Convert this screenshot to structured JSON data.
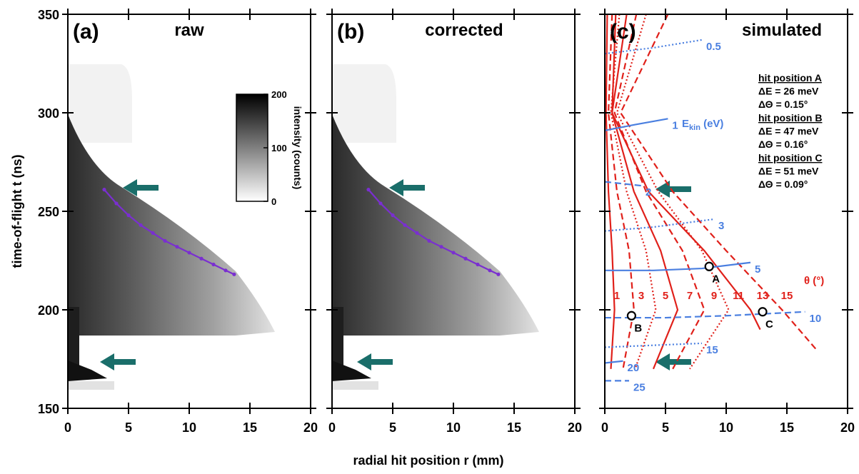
{
  "chart_data": [
    {
      "type": "heatmap",
      "panel_label": "(a)",
      "title": "raw",
      "ylabel": "time-of-flight t (ns)",
      "show_ytick_labels": true,
      "xlim": [
        0,
        20
      ],
      "xticks": [
        0,
        5,
        10,
        15,
        20
      ],
      "ylim": [
        150,
        350
      ],
      "yticks": [
        150,
        200,
        250,
        300,
        350
      ],
      "trace": {
        "color": "#7a2fd0",
        "x": [
          3,
          4,
          5,
          6,
          7,
          8,
          9,
          10,
          11,
          12,
          13,
          13.7
        ],
        "values": [
          261,
          254,
          248,
          243,
          239,
          235,
          232,
          229,
          226,
          223,
          220,
          218
        ]
      },
      "colorbar": {
        "label": "intensity (counts)",
        "lim": [
          0,
          200
        ],
        "ticks": [
          0,
          100,
          200
        ]
      }
    },
    {
      "type": "heatmap",
      "panel_label": "(b)",
      "title": "corrected",
      "xlabel": "radial hit position r (mm)",
      "show_ytick_labels": false,
      "xlim": [
        0,
        20
      ],
      "xticks": [
        0,
        5,
        10,
        15,
        20
      ],
      "ylim": [
        150,
        350
      ],
      "yticks": [
        150,
        200,
        250,
        300,
        350
      ],
      "trace": {
        "color": "#7a2fd0",
        "x": [
          3,
          4,
          5,
          6,
          7,
          8,
          9,
          10,
          11,
          12,
          13,
          13.7
        ],
        "values": [
          261,
          254,
          248,
          243,
          239,
          235,
          232,
          229,
          226,
          223,
          220,
          218
        ]
      }
    },
    {
      "type": "line",
      "panel_label": "(c)",
      "title": "simulated",
      "show_ytick_labels": false,
      "xlim": [
        0,
        20
      ],
      "xticks": [
        0,
        5,
        10,
        15,
        20
      ],
      "ylim": [
        150,
        350
      ],
      "yticks": [
        150,
        200,
        250,
        300,
        350
      ],
      "energy_label": [
        "E",
        "kin",
        " (eV)"
      ],
      "energy_series": [
        {
          "name": "0.5",
          "color": "#4a7fe0",
          "style": "dotted",
          "x": [
            0,
            4,
            8
          ],
          "values": [
            330,
            333,
            337
          ]
        },
        {
          "name": "1",
          "color": "#4a7fe0",
          "style": "solid",
          "x": [
            0,
            2.5,
            5.2
          ],
          "values": [
            291,
            294,
            297
          ]
        },
        {
          "name": "2",
          "color": "#4a7fe0",
          "style": "dashed",
          "x": [
            0,
            1.5,
            3
          ],
          "values": [
            265,
            264,
            263
          ]
        },
        {
          "name": "3",
          "color": "#4a7fe0",
          "style": "dotted",
          "x": [
            0,
            4,
            9
          ],
          "values": [
            240,
            242,
            246
          ]
        },
        {
          "name": "5",
          "color": "#4a7fe0",
          "style": "solid",
          "x": [
            0,
            4,
            8,
            12
          ],
          "values": [
            220,
            220,
            221,
            224
          ]
        },
        {
          "name": "10",
          "color": "#4a7fe0",
          "style": "dashed",
          "x": [
            0,
            5,
            10,
            16.5
          ],
          "values": [
            196,
            196,
            197,
            199
          ]
        },
        {
          "name": "15",
          "color": "#4a7fe0",
          "style": "dotted",
          "x": [
            0,
            4,
            8
          ],
          "values": [
            181,
            182,
            183
          ]
        },
        {
          "name": "20",
          "color": "#4a7fe0",
          "style": "solid",
          "x": [
            0,
            1.5
          ],
          "values": [
            173,
            174
          ]
        },
        {
          "name": "25",
          "color": "#4a7fe0",
          "style": "dashed",
          "x": [
            0,
            2
          ],
          "values": [
            164,
            164
          ]
        }
      ],
      "angle_label": "θ (°)",
      "angle_series": [
        {
          "name": "1",
          "color": "#e0201a",
          "style": "solid",
          "x": [
            0.2,
            0.1,
            0.3,
            0.6,
            0.8,
            0.5
          ],
          "values": [
            350,
            300,
            260,
            230,
            200,
            170
          ]
        },
        {
          "name": "3",
          "color": "#e0201a",
          "style": "dashed",
          "x": [
            0.6,
            0.3,
            1,
            2,
            2.4,
            1.5
          ],
          "values": [
            350,
            300,
            260,
            230,
            200,
            170
          ]
        },
        {
          "name": "5",
          "color": "#e0201a",
          "style": "dotted",
          "x": [
            1.2,
            0.5,
            1.8,
            3.4,
            4.2,
            2.5
          ],
          "values": [
            350,
            300,
            260,
            230,
            200,
            170
          ]
        },
        {
          "name": "7",
          "color": "#e0201a",
          "style": "solid",
          "x": [
            1.8,
            0.6,
            2.4,
            4.6,
            6,
            4
          ],
          "values": [
            350,
            300,
            260,
            230,
            200,
            170
          ]
        },
        {
          "name": "9",
          "color": "#e0201a",
          "style": "dashed",
          "x": [
            2.6,
            0.8,
            3.4,
            6.4,
            8.2,
            5.6
          ],
          "values": [
            350,
            300,
            260,
            230,
            200,
            170
          ]
        },
        {
          "name": "11",
          "color": "#e0201a",
          "style": "dotted",
          "x": [
            3.4,
            1,
            4.4,
            8,
            10.2,
            7
          ],
          "values": [
            350,
            300,
            260,
            230,
            200,
            170
          ]
        },
        {
          "name": "13",
          "color": "#e0201a",
          "style": "solid",
          "x": [
            0.9,
            0.6,
            3.6,
            8.2,
            12,
            12.8
          ],
          "values": [
            350,
            300,
            260,
            230,
            200,
            190
          ]
        },
        {
          "name": "15",
          "color": "#e0201a",
          "style": "dashed",
          "x": [
            5.2,
            1.3,
            5.6,
            10,
            14.6,
            17.4
          ],
          "values": [
            350,
            300,
            260,
            230,
            200,
            180
          ]
        }
      ],
      "points": {
        "labels": [
          "A",
          "B",
          "C"
        ],
        "x": [
          8.6,
          2.2,
          13
        ],
        "values": [
          222,
          197,
          199
        ]
      },
      "resolution_box": [
        {
          "title": "hit position A",
          "dE": "ΔE = 26 meV",
          "dTheta": "ΔΘ = 0.15°"
        },
        {
          "title": "hit position B",
          "dE": "ΔE = 47 meV",
          "dTheta": "ΔΘ = 0.16°"
        },
        {
          "title": "hit position C",
          "dE": "ΔE = 51 meV",
          "dTheta": "ΔΘ = 0.09°"
        }
      ]
    }
  ]
}
